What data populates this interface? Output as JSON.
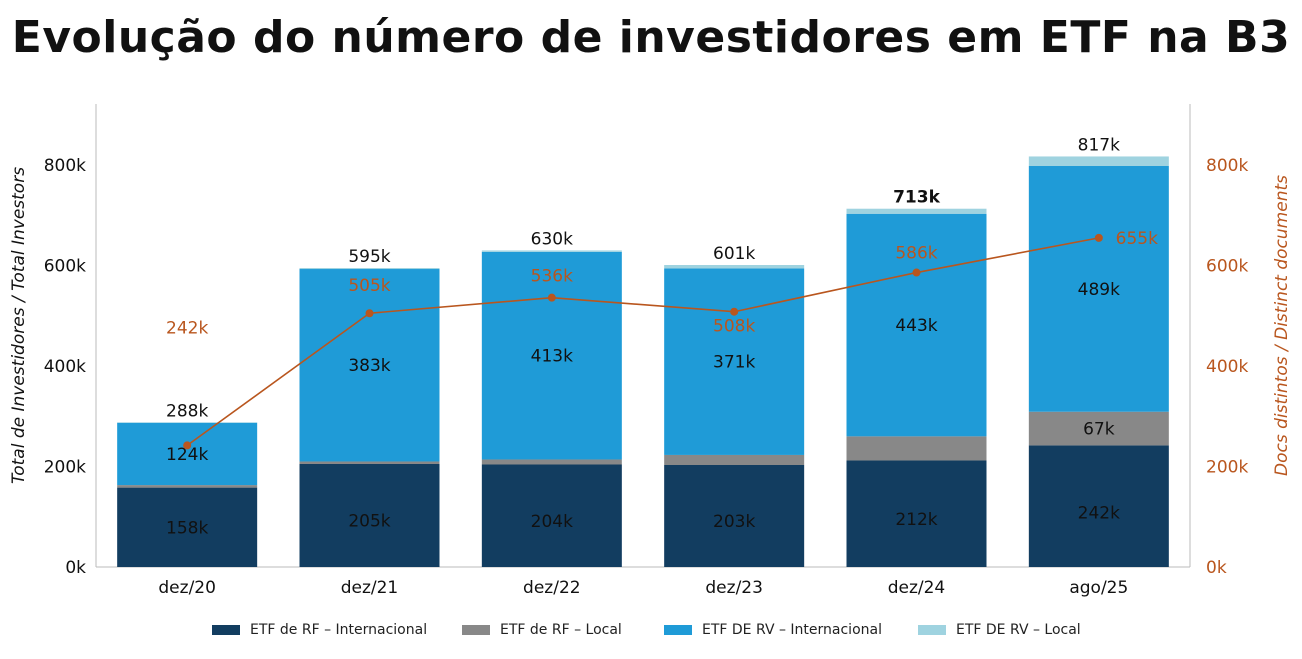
{
  "chart_data": {
    "type": "bar",
    "title": "Evolução do número de investidores em ETF na B3",
    "categories": [
      "dez/20",
      "dez/21",
      "dez/22",
      "dez/23",
      "dez/24",
      "ago/25"
    ],
    "series": [
      {
        "name": "ETF de RF – Internacional",
        "values": [
          158,
          205,
          204,
          203,
          212,
          242
        ],
        "labels": [
          "158k",
          "205k",
          "204k",
          "203k",
          "212k",
          "242k"
        ],
        "color": "#123d60"
      },
      {
        "name": "ETF de RF – Local",
        "values": [
          5,
          5,
          10,
          20,
          48,
          67
        ],
        "labels": [
          "",
          "",
          "",
          "",
          "",
          "67k"
        ],
        "color": "#888888"
      },
      {
        "name": "ETF DE RV – Internacional",
        "values": [
          124,
          383,
          413,
          371,
          443,
          489
        ],
        "labels": [
          "124k",
          "383k",
          "413k",
          "371k",
          "443k",
          "489k"
        ],
        "color": "#1f9bd7"
      },
      {
        "name": "ETF DE RV – Local",
        "values": [
          1,
          2,
          3,
          7,
          10,
          19
        ],
        "labels": [
          "",
          "",
          "",
          "",
          "",
          ""
        ],
        "color": "#9fd3e0"
      }
    ],
    "totals": [
      "288k",
      "595k",
      "630k",
      "601k",
      "713k",
      "817k"
    ],
    "line": {
      "name": "Docs distintos / Distinct documents",
      "values": [
        242,
        505,
        536,
        508,
        586,
        655
      ],
      "labels": [
        "242k",
        "505k",
        "536k",
        "508k",
        "586k",
        "655k"
      ],
      "color": "#b9561e",
      "axis": "right"
    },
    "ylabel_left": "Total de Investidores / Total Investors",
    "ylabel_right": "Docs distintos / Distinct documents",
    "y_ticks": [
      "0k",
      "200k",
      "400k",
      "600k",
      "800k"
    ],
    "ylim": [
      0,
      920
    ]
  }
}
